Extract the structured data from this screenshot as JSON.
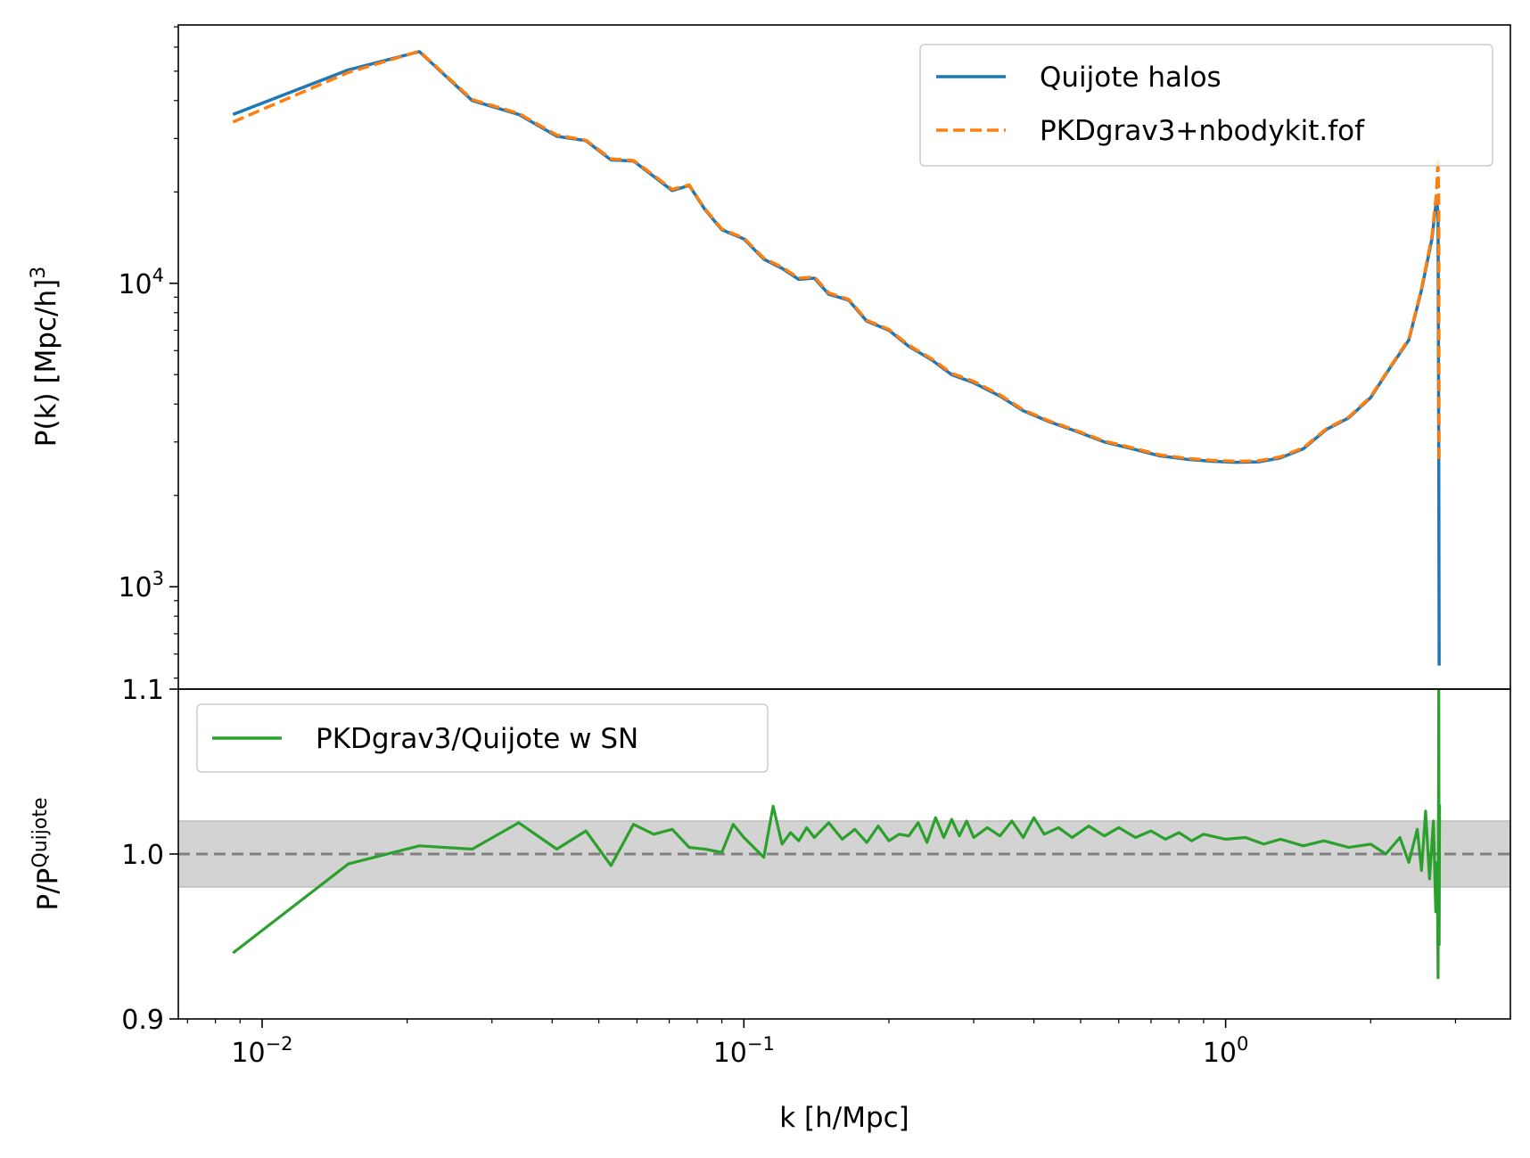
{
  "chart_data": [
    {
      "type": "line",
      "panel": "top",
      "ylabel": {
        "main": "P(k) [Mpc/h]",
        "sup": "3"
      },
      "yscale": "log",
      "xscale": "log",
      "ylim": [
        460,
        71000
      ],
      "xlim": [
        0.0067,
        3.9
      ],
      "grid": false,
      "legend_position": "upper right",
      "y_tick_labels": [
        {
          "value": 1000,
          "base": "10",
          "exp": "3"
        },
        {
          "value": 10000,
          "base": "10",
          "exp": "4"
        }
      ],
      "series": [
        {
          "name": "Quijote halos",
          "color": "#1f77b4",
          "style": "solid",
          "x": [
            0.0087,
            0.0151,
            0.0212,
            0.0273,
            0.0341,
            0.0409,
            0.047,
            0.053,
            0.059,
            0.065,
            0.071,
            0.077,
            0.083,
            0.09,
            0.1,
            0.11,
            0.12,
            0.13,
            0.14,
            0.15,
            0.165,
            0.18,
            0.2,
            0.22,
            0.245,
            0.27,
            0.3,
            0.34,
            0.38,
            0.43,
            0.49,
            0.56,
            0.64,
            0.73,
            0.83,
            0.94,
            1.05,
            1.17,
            1.3,
            1.45,
            1.62,
            1.8,
            2.0,
            2.2,
            2.4,
            2.55,
            2.68,
            2.74,
            2.76,
            2.77,
            2.775
          ],
          "y": [
            36000,
            50500,
            58000,
            40000,
            36000,
            30500,
            29500,
            25500,
            25300,
            22500,
            20200,
            21000,
            17500,
            15000,
            14000,
            12000,
            11200,
            10300,
            10400,
            9200,
            8800,
            7500,
            7000,
            6200,
            5600,
            5000,
            4700,
            4250,
            3800,
            3500,
            3250,
            3000,
            2850,
            2700,
            2630,
            2590,
            2570,
            2580,
            2660,
            2850,
            3300,
            3600,
            4200,
            5300,
            6500,
            9500,
            14000,
            19000,
            17000,
            2600,
            550
          ]
        },
        {
          "name": "PKDgrav3+nbodykit.fof",
          "color": "#ff7f0e",
          "style": "dashed",
          "x": [
            0.0087,
            0.0151,
            0.0212,
            0.0273,
            0.0341,
            0.0409,
            0.047,
            0.053,
            0.059,
            0.065,
            0.071,
            0.077,
            0.083,
            0.09,
            0.1,
            0.11,
            0.12,
            0.13,
            0.14,
            0.15,
            0.165,
            0.18,
            0.2,
            0.22,
            0.245,
            0.27,
            0.3,
            0.34,
            0.38,
            0.43,
            0.49,
            0.56,
            0.64,
            0.73,
            0.83,
            0.94,
            1.05,
            1.17,
            1.3,
            1.45,
            1.62,
            1.8,
            2.0,
            2.2,
            2.4,
            2.55,
            2.68,
            2.74,
            2.76,
            2.77,
            2.775
          ],
          "y": [
            34000,
            49500,
            58200,
            40300,
            36300,
            30800,
            29600,
            25700,
            25400,
            22700,
            20400,
            21100,
            17600,
            15100,
            14100,
            12100,
            11300,
            10400,
            10500,
            9300,
            8850,
            7550,
            7050,
            6250,
            5650,
            5050,
            4750,
            4290,
            3830,
            3520,
            3270,
            3020,
            2870,
            2720,
            2650,
            2610,
            2590,
            2600,
            2680,
            2870,
            3320,
            3620,
            4230,
            5330,
            6550,
            9600,
            14300,
            20000,
            26000,
            17000,
            2600
          ]
        }
      ]
    },
    {
      "type": "line",
      "panel": "bottom",
      "xlabel": "k [h/Mpc]",
      "ylabel": {
        "main": "P/P",
        "sup": "Quijote"
      },
      "xscale": "log",
      "xlim": [
        0.0067,
        3.9
      ],
      "ylim": [
        0.9,
        1.1
      ],
      "y_tick_labels": [
        "0.9",
        "1.0",
        "1.1"
      ],
      "x_tick_labels": [
        {
          "value": 0.01,
          "base": "10",
          "exp": "−2"
        },
        {
          "value": 0.1,
          "base": "10",
          "exp": "−1"
        },
        {
          "value": 1,
          "base": "10",
          "exp": "0"
        }
      ],
      "grid": false,
      "legend_position": "upper left",
      "reference_line": {
        "y": 1.0,
        "color": "#808080",
        "style": "dashed"
      },
      "band": {
        "ymin": 0.98,
        "ymax": 1.02,
        "color": "#d3d3d3"
      },
      "series": [
        {
          "name": "PKDgrav3/Quijote w SN",
          "color": "#2ca02c",
          "style": "solid",
          "x": [
            0.0087,
            0.0151,
            0.0212,
            0.0273,
            0.0341,
            0.0409,
            0.047,
            0.053,
            0.059,
            0.065,
            0.071,
            0.077,
            0.083,
            0.09,
            0.095,
            0.1,
            0.11,
            0.115,
            0.12,
            0.125,
            0.13,
            0.135,
            0.14,
            0.15,
            0.16,
            0.17,
            0.18,
            0.19,
            0.2,
            0.21,
            0.22,
            0.23,
            0.24,
            0.25,
            0.26,
            0.27,
            0.28,
            0.29,
            0.3,
            0.32,
            0.34,
            0.36,
            0.38,
            0.4,
            0.42,
            0.45,
            0.48,
            0.52,
            0.56,
            0.6,
            0.65,
            0.7,
            0.75,
            0.8,
            0.85,
            0.9,
            1.0,
            1.1,
            1.2,
            1.3,
            1.45,
            1.6,
            1.8,
            2.0,
            2.15,
            2.3,
            2.4,
            2.5,
            2.55,
            2.6,
            2.65,
            2.7,
            2.73,
            2.75,
            2.76,
            2.77,
            2.775,
            2.78
          ],
          "y": [
            0.94,
            0.994,
            1.005,
            1.003,
            1.019,
            1.003,
            1.014,
            0.993,
            1.018,
            1.012,
            1.015,
            1.004,
            1.003,
            1.001,
            1.018,
            1.01,
            0.998,
            1.029,
            1.006,
            1.013,
            1.008,
            1.016,
            1.01,
            1.019,
            1.009,
            1.015,
            1.007,
            1.017,
            1.008,
            1.012,
            1.011,
            1.019,
            1.007,
            1.022,
            1.01,
            1.021,
            1.011,
            1.02,
            1.01,
            1.016,
            1.011,
            1.02,
            1.01,
            1.022,
            1.012,
            1.016,
            1.01,
            1.017,
            1.011,
            1.016,
            1.01,
            1.014,
            1.009,
            1.013,
            1.008,
            1.012,
            1.009,
            1.01,
            1.006,
            1.009,
            1.005,
            1.008,
            1.004,
            1.006,
            1.0,
            1.01,
            0.995,
            1.015,
            0.99,
            1.026,
            0.985,
            1.02,
            0.965,
            0.995,
            0.925,
            1.1,
            0.945,
            1.03
          ]
        }
      ]
    }
  ]
}
